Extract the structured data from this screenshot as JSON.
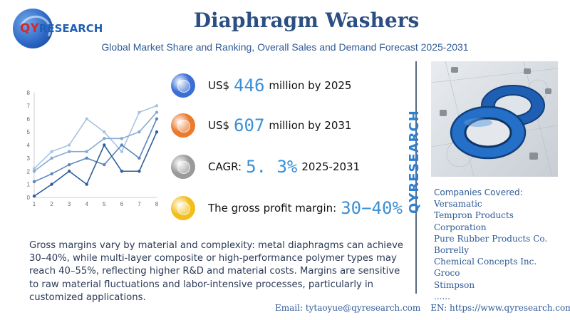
{
  "logo": {
    "q_text": "QY",
    "rest_text": "RESEARCH"
  },
  "header": {
    "title": "Diaphragm Washers",
    "subtitle": "Global Market Share and Ranking, Overall Sales and Demand Forecast 2025-2031"
  },
  "metrics": [
    {
      "pre": "US$",
      "value": "446",
      "post": "million by 2025",
      "color": "#3b6fd6"
    },
    {
      "pre": "US$",
      "value": "607",
      "post": "million by 2031",
      "color": "#ea7a2e"
    },
    {
      "pre": "CAGR:",
      "value": "5. 3%",
      "post": "2025-2031",
      "color": "#9a9a9a"
    },
    {
      "pre": "The gross profit margin:",
      "value": "30−40%",
      "post": "",
      "color": "#f2be1a"
    }
  ],
  "brand_vertical": "QYRESEARCH",
  "companies": {
    "label": "Companies Covered:",
    "items": [
      "Versamatic",
      "Tempron Products",
      "Corporation",
      "Pure Rubber Products Co.",
      "Borrelly",
      "Chemical Concepts Inc.",
      "Groco",
      "Stimpson",
      "......"
    ]
  },
  "description": "Gross margins vary by material and complexity: metal diaphragms can achieve 30–40%, while multi-layer composite or high-performance polymer types may reach 40–55%, reflecting higher R&D and material costs. Margins are sensitive to raw material fluctuations and labor-intensive processes, particularly in customized applications.",
  "footer": {
    "email": "Email:  tytaoyue@qyresearch.com",
    "website": "EN: https://www.qyresearch.com"
  },
  "chart_data": {
    "type": "line",
    "x": [
      1,
      2,
      3,
      4,
      5,
      6,
      7,
      8
    ],
    "xticks": [
      "1",
      "2",
      "3",
      "4",
      "5",
      "6",
      "7",
      "8"
    ],
    "yticks": [
      "0",
      "1",
      "2",
      "3",
      "4",
      "5",
      "6",
      "7",
      "8"
    ],
    "ylim": [
      0,
      8
    ],
    "xlim": [
      1,
      8
    ],
    "grid": false,
    "series": [
      {
        "values": [
          2.2,
          3.5,
          4.0,
          6.0,
          5.0,
          3.5,
          6.5,
          7.0
        ],
        "color": "#a9c3e0"
      },
      {
        "values": [
          2.0,
          3.0,
          3.5,
          3.5,
          4.5,
          4.5,
          5.0,
          6.5
        ],
        "color": "#86aad4"
      },
      {
        "values": [
          1.2,
          1.8,
          2.5,
          3.0,
          2.5,
          4.0,
          3.0,
          6.0
        ],
        "color": "#5b86be"
      },
      {
        "values": [
          0.1,
          1.0,
          2.0,
          1.0,
          4.0,
          2.0,
          2.0,
          5.0
        ],
        "color": "#2f5f9a"
      }
    ]
  }
}
